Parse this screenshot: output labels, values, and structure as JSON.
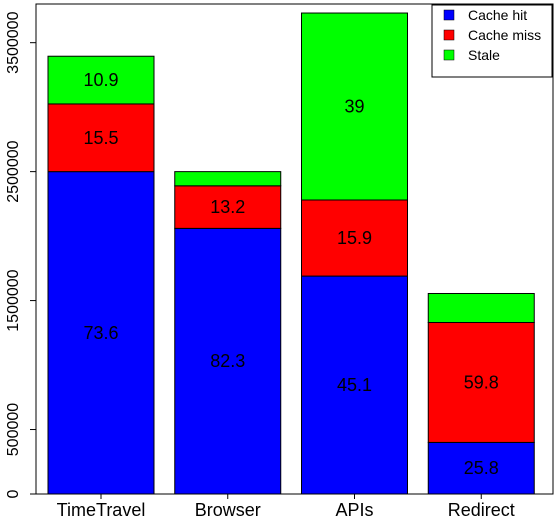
{
  "chart_data": {
    "type": "bar",
    "stacked": true,
    "categories": [
      "TimeTravel",
      "Browser",
      "APIs",
      "Redirect"
    ],
    "series": [
      {
        "name": "Cache hit",
        "color": "#0000ff",
        "values": [
          2500000,
          2060000,
          1690000,
          400000
        ],
        "labels": [
          "73.6",
          "82.3",
          "45.1",
          "25.8"
        ]
      },
      {
        "name": "Cache miss",
        "color": "#ff0000",
        "values": [
          525000,
          330000,
          590000,
          930000
        ],
        "labels": [
          "15.5",
          "13.2",
          "15.9",
          "59.8"
        ]
      },
      {
        "name": "Stale",
        "color": "#00ff00",
        "values": [
          370000,
          110000,
          1450000,
          225000
        ],
        "labels": [
          "10.9",
          "",
          "39",
          ""
        ]
      }
    ],
    "yticks": [
      0,
      500000,
      1500000,
      2500000,
      3500000
    ],
    "ytick_labels": [
      "0",
      "500000",
      "1500000",
      "2500000",
      "3500000"
    ],
    "ylim": [
      0,
      3800000
    ],
    "legend": "top-right",
    "grid": false,
    "title": "",
    "xlabel": "",
    "ylabel": ""
  }
}
